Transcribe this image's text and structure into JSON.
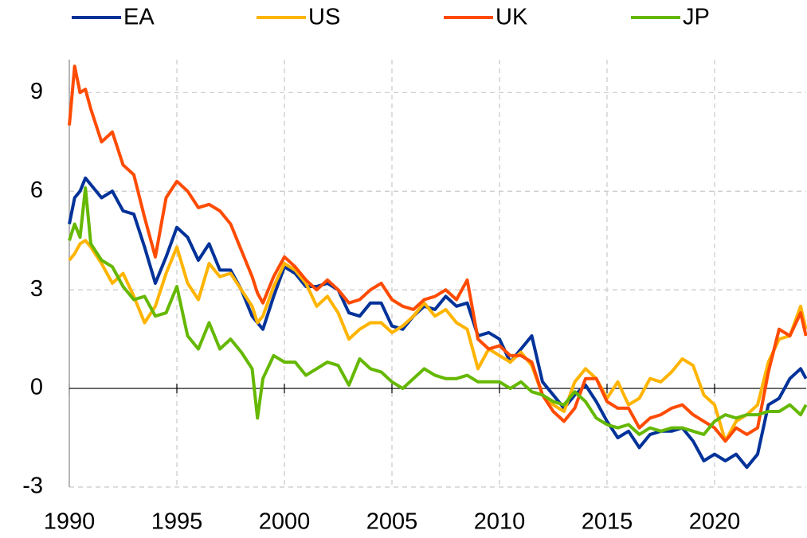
{
  "chart_data": {
    "type": "line",
    "x": [
      1990,
      1990.25,
      1990.5,
      1990.75,
      1991,
      1991.5,
      1992,
      1992.5,
      1993,
      1993.5,
      1994,
      1994.5,
      1995,
      1995.5,
      1996,
      1996.5,
      1997,
      1997.5,
      1998,
      1998.5,
      1998.75,
      1999,
      1999.5,
      2000,
      2000.5,
      2001,
      2001.5,
      2002,
      2002.5,
      2003,
      2003.5,
      2004,
      2004.5,
      2005,
      2005.5,
      2006,
      2006.5,
      2007,
      2007.5,
      2008,
      2008.5,
      2009,
      2009.5,
      2010,
      2010.5,
      2011,
      2011.5,
      2012,
      2012.5,
      2013,
      2013.5,
      2014,
      2014.5,
      2015,
      2015.5,
      2016,
      2016.5,
      2017,
      2017.5,
      2018,
      2018.5,
      2019,
      2019.5,
      2020,
      2020.5,
      2021,
      2021.5,
      2022,
      2022.5,
      2023,
      2023.5,
      2024,
      2024.25
    ],
    "series": [
      {
        "name": "EA",
        "color": "#003299",
        "values": [
          5.0,
          5.8,
          6.0,
          6.4,
          6.2,
          5.8,
          6.0,
          5.4,
          5.3,
          4.3,
          3.2,
          4.0,
          4.9,
          4.6,
          3.9,
          4.4,
          3.6,
          3.6,
          3.0,
          2.2,
          2.0,
          1.8,
          2.8,
          3.7,
          3.5,
          3.1,
          3.1,
          3.2,
          3.0,
          2.3,
          2.2,
          2.6,
          2.6,
          1.9,
          1.8,
          2.2,
          2.5,
          2.4,
          2.8,
          2.5,
          2.6,
          1.6,
          1.7,
          1.5,
          0.8,
          1.2,
          1.6,
          0.2,
          -0.2,
          -0.6,
          -0.2,
          0.1,
          -0.4,
          -1.0,
          -1.5,
          -1.3,
          -1.8,
          -1.4,
          -1.3,
          -1.3,
          -1.2,
          -1.6,
          -2.2,
          -2.0,
          -2.2,
          -2.0,
          -2.4,
          -2.0,
          -0.5,
          -0.3,
          0.3,
          0.6,
          0.3
        ]
      },
      {
        "name": "US",
        "color": "#ffb400",
        "values": [
          3.9,
          4.1,
          4.4,
          4.5,
          4.3,
          3.8,
          3.2,
          3.5,
          2.8,
          2.0,
          2.5,
          3.5,
          4.3,
          3.2,
          2.7,
          3.8,
          3.4,
          3.5,
          3.0,
          2.5,
          2.0,
          2.2,
          3.1,
          3.8,
          3.6,
          3.2,
          2.5,
          2.8,
          2.3,
          1.5,
          1.8,
          2.0,
          2.0,
          1.7,
          1.9,
          2.2,
          2.6,
          2.2,
          2.4,
          2.0,
          1.8,
          0.6,
          1.2,
          1.0,
          0.8,
          1.1,
          0.7,
          -0.2,
          -0.5,
          -0.7,
          0.2,
          0.6,
          0.3,
          -0.3,
          0.2,
          -0.5,
          -0.3,
          0.3,
          0.2,
          0.5,
          0.9,
          0.7,
          -0.2,
          -0.5,
          -1.6,
          -1.0,
          -0.8,
          -0.5,
          0.8,
          1.5,
          1.6,
          2.5,
          1.8
        ]
      },
      {
        "name": "UK",
        "color": "#ff4b00",
        "values": [
          8.0,
          9.8,
          9.0,
          9.1,
          8.5,
          7.5,
          7.8,
          6.8,
          6.5,
          5.2,
          4.0,
          5.8,
          6.3,
          6.0,
          5.5,
          5.6,
          5.4,
          5.0,
          4.2,
          3.4,
          2.9,
          2.6,
          3.4,
          4.0,
          3.7,
          3.3,
          3.0,
          3.3,
          3.0,
          2.6,
          2.7,
          3.0,
          3.2,
          2.7,
          2.5,
          2.4,
          2.7,
          2.8,
          3.0,
          2.7,
          3.3,
          1.5,
          1.2,
          1.3,
          1.0,
          1.0,
          0.8,
          -0.2,
          -0.7,
          -1.0,
          -0.6,
          0.3,
          0.3,
          -0.4,
          -0.6,
          -0.6,
          -1.2,
          -0.9,
          -0.8,
          -0.6,
          -0.5,
          -0.8,
          -1.0,
          -1.2,
          -1.6,
          -1.2,
          -1.4,
          -1.2,
          0.5,
          1.8,
          1.6,
          2.3,
          1.6
        ]
      },
      {
        "name": "JP",
        "color": "#65b800",
        "values": [
          4.5,
          5.0,
          4.6,
          6.1,
          4.4,
          3.9,
          3.7,
          3.1,
          2.7,
          2.8,
          2.2,
          2.3,
          3.1,
          1.6,
          1.2,
          2.0,
          1.2,
          1.5,
          1.1,
          0.6,
          -0.9,
          0.3,
          1.0,
          0.8,
          0.8,
          0.4,
          0.6,
          0.8,
          0.7,
          0.1,
          0.9,
          0.6,
          0.5,
          0.2,
          0.0,
          0.3,
          0.6,
          0.4,
          0.3,
          0.3,
          0.4,
          0.2,
          0.2,
          0.2,
          0.0,
          0.2,
          -0.1,
          -0.2,
          -0.4,
          -0.5,
          -0.1,
          -0.4,
          -0.9,
          -1.1,
          -1.2,
          -1.1,
          -1.4,
          -1.2,
          -1.3,
          -1.2,
          -1.2,
          -1.3,
          -1.4,
          -1.0,
          -0.8,
          -0.9,
          -0.8,
          -0.8,
          -0.7,
          -0.7,
          -0.5,
          -0.8,
          -0.5
        ]
      }
    ],
    "xlim": [
      1990,
      2024.26
    ],
    "xticks": [
      1990,
      1995,
      2000,
      2005,
      2010,
      2015,
      2020
    ],
    "ylim": [
      -3,
      10
    ],
    "yticks": [
      -3,
      0,
      3,
      6,
      9
    ],
    "grid": true
  }
}
